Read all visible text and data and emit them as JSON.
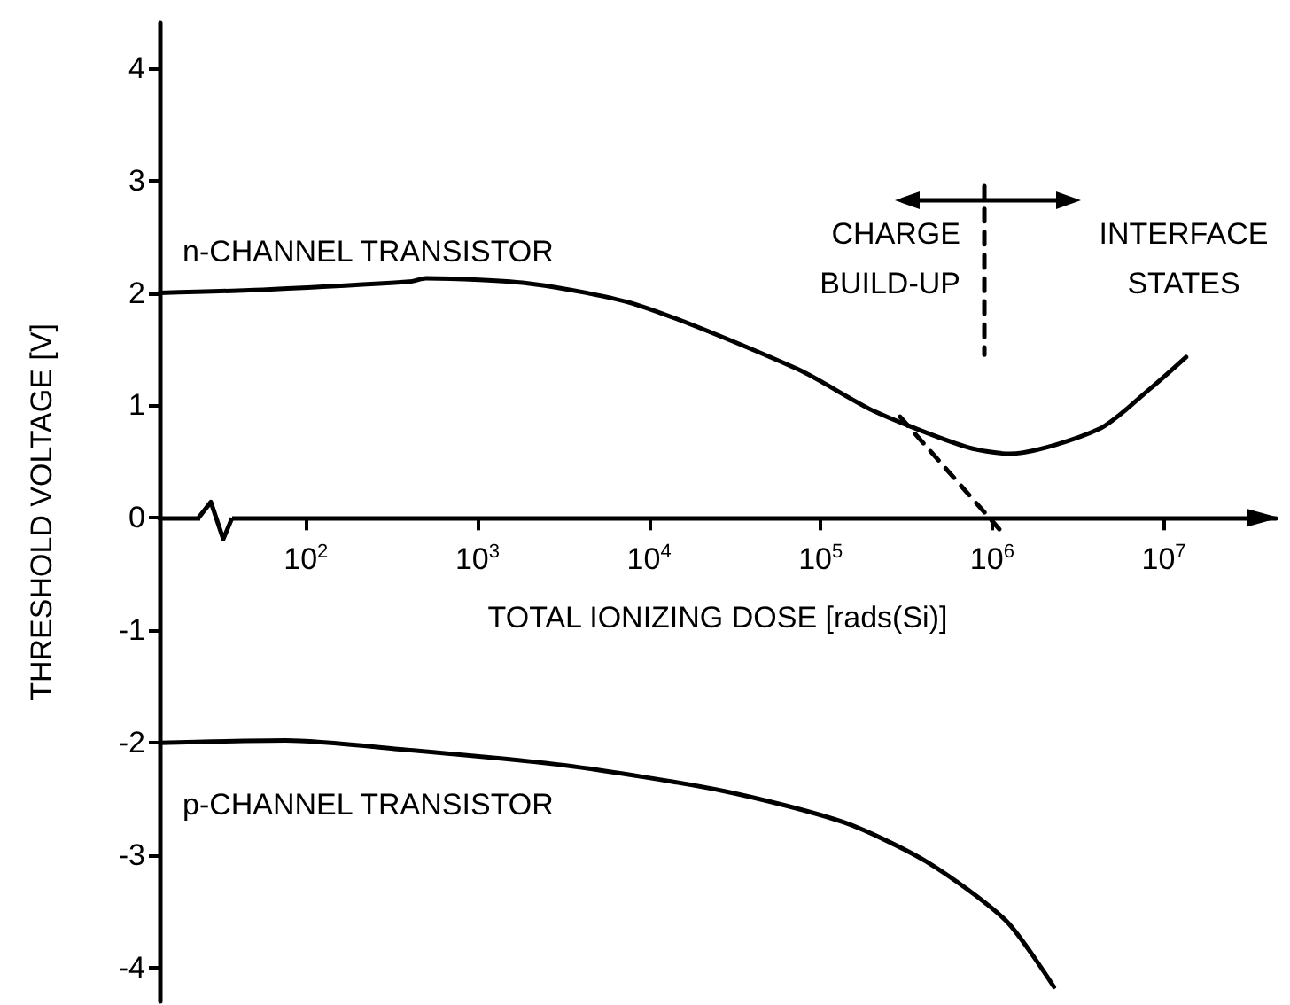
{
  "chart_data": {
    "type": "line",
    "xlabel": "TOTAL IONIZING DOSE [rads(Si)]",
    "ylabel": "THRESHOLD VOLTAGE [V]",
    "log": "x",
    "xlim": [
      14,
      45000000
    ],
    "ylim": [
      -4.3,
      4.4
    ],
    "xticks": [
      {
        "value": 100,
        "label": "10$^{2}$"
      },
      {
        "value": 1000,
        "label": "10$^{3}$"
      },
      {
        "value": 10000,
        "label": "10$^{4}$"
      },
      {
        "value": 100000,
        "label": "10$^{5}$"
      },
      {
        "value": 1000000,
        "label": "10$^{6}$"
      },
      {
        "value": 10000000,
        "label": "10$^{7}$"
      }
    ],
    "yticks": [
      -4,
      -3,
      -2,
      -1,
      0,
      1,
      2,
      3,
      4
    ],
    "marker": "none",
    "line_style": "solid",
    "annotations": [
      "CHARGE\nBUILD-UP",
      "INTERFACE\nSTATES"
    ],
    "series": [
      {
        "name": "n-CHANNEL TRANSISTOR",
        "color": "#000000",
        "x": [
          14,
          59,
          400,
          500,
          2100,
          8700,
          74000,
          204000,
          710000,
          1260000,
          4200000,
          8500000,
          13500000
        ],
        "values": [
          2.0,
          2.03,
          2.1,
          2.13,
          2.08,
          1.89,
          1.32,
          0.95,
          0.63,
          0.57,
          0.79,
          1.16,
          1.43
        ]
      },
      {
        "name": "p-CHANNEL TRANSISTOR",
        "color": "#000000",
        "x": [
          14,
          76,
          370,
          3200,
          27500,
          138000,
          417000,
          1200000,
          2290000
        ],
        "values": [
          -2.0,
          -1.98,
          -2.06,
          -2.2,
          -2.43,
          -2.71,
          -3.06,
          -3.58,
          -4.17
        ]
      },
      {
        "color": "#000000",
        "x": [
          290000,
          1100000
        ],
        "values": [
          0.9,
          -0.1
        ],
        "line_style": "dashed"
      },
      {
        "color": "#000000",
        "x": [
          900000,
          900000
        ],
        "values": [
          2.95,
          1.45
        ],
        "line_style": "dashed"
      }
    ]
  }
}
